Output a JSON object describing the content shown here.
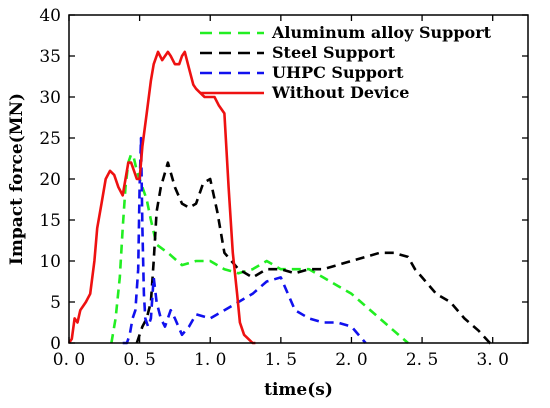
{
  "chart_data": {
    "type": "line",
    "xlabel": "time(s)",
    "ylabel": "Impact force(MN)",
    "xlim": [
      0,
      3.25
    ],
    "ylim": [
      0,
      40
    ],
    "xticks": [
      0.0,
      0.5,
      1.0,
      1.5,
      2.0,
      2.5,
      3.0
    ],
    "xtick_labels": [
      "0. 0",
      "0. 5",
      "1. 0",
      "1. 5",
      "2. 0",
      "2. 5",
      "3. 0"
    ],
    "yticks": [
      0,
      5,
      10,
      15,
      20,
      25,
      30,
      35,
      40
    ],
    "ytick_labels": [
      "0",
      "5",
      "10",
      "15",
      "20",
      "25",
      "30",
      "35",
      "40"
    ],
    "legend_position": "top-right",
    "series": [
      {
        "name": "Aluminum alloy Support",
        "color": "#22ee22",
        "dash": "dashed",
        "x": [
          0.3,
          0.33,
          0.36,
          0.38,
          0.4,
          0.42,
          0.44,
          0.46,
          0.48,
          0.5,
          0.52,
          0.55,
          0.58,
          0.62,
          0.7,
          0.8,
          0.9,
          1.0,
          1.1,
          1.2,
          1.3,
          1.4,
          1.5,
          1.6,
          1.7,
          1.8,
          1.9,
          2.0,
          2.1,
          2.2,
          2.3,
          2.4
        ],
        "y": [
          0,
          3,
          8,
          14,
          19,
          22,
          23,
          22.5,
          21,
          20,
          19,
          17.5,
          15,
          12,
          11,
          9.5,
          10,
          10,
          9,
          8.5,
          9,
          10,
          9,
          9,
          9,
          8,
          7,
          6,
          4.5,
          3,
          1.5,
          0
        ]
      },
      {
        "name": "Steel Support",
        "color": "#000000",
        "dash": "dashed",
        "x": [
          0.48,
          0.5,
          0.52,
          0.55,
          0.58,
          0.6,
          0.62,
          0.65,
          0.7,
          0.75,
          0.8,
          0.85,
          0.9,
          0.95,
          1.0,
          1.05,
          1.1,
          1.15,
          1.2,
          1.3,
          1.4,
          1.5,
          1.6,
          1.7,
          1.8,
          1.9,
          2.0,
          2.1,
          2.2,
          2.3,
          2.4,
          2.45,
          2.5,
          2.6,
          2.7,
          2.8,
          2.9,
          2.98,
          3.0
        ],
        "y": [
          0,
          1,
          2,
          3,
          5,
          10,
          16,
          19,
          22,
          19,
          17,
          16.5,
          17,
          19.5,
          20,
          16,
          11,
          10,
          9,
          8,
          9,
          9,
          8.5,
          9,
          9,
          9.5,
          10,
          10.5,
          11,
          11,
          10.5,
          9,
          8,
          6,
          5,
          3,
          1.5,
          0,
          0
        ]
      },
      {
        "name": "UHPC Support",
        "color": "#1111ee",
        "dash": "dashed",
        "x": [
          0.38,
          0.41,
          0.43,
          0.45,
          0.47,
          0.49,
          0.5,
          0.51,
          0.52,
          0.53,
          0.54,
          0.56,
          0.58,
          0.6,
          0.62,
          0.65,
          0.68,
          0.72,
          0.75,
          0.8,
          0.85,
          0.9,
          1.0,
          1.1,
          1.2,
          1.3,
          1.4,
          1.5,
          1.6,
          1.7,
          1.8,
          1.9,
          2.0,
          2.1
        ],
        "y": [
          0,
          0,
          1,
          3,
          4,
          9,
          19,
          25,
          14,
          6,
          3,
          2,
          3,
          8,
          5,
          3,
          2,
          4,
          3,
          1,
          2,
          3.5,
          3,
          4,
          5,
          6,
          7.5,
          8,
          4,
          3,
          2.5,
          2.5,
          2,
          0
        ]
      },
      {
        "name": "Without Device",
        "color": "#ee1111",
        "dash": "solid",
        "x": [
          0,
          0.02,
          0.04,
          0.06,
          0.08,
          0.1,
          0.12,
          0.15,
          0.18,
          0.2,
          0.23,
          0.26,
          0.29,
          0.32,
          0.35,
          0.38,
          0.4,
          0.42,
          0.44,
          0.46,
          0.48,
          0.5,
          0.52,
          0.55,
          0.58,
          0.6,
          0.63,
          0.66,
          0.7,
          0.72,
          0.75,
          0.78,
          0.8,
          0.82,
          0.85,
          0.88,
          0.9,
          0.93,
          0.96,
          1.0,
          1.03,
          1.06,
          1.1,
          1.13,
          1.16,
          1.19,
          1.21,
          1.24,
          1.27,
          1.3,
          1.32
        ],
        "y": [
          0,
          0.5,
          3,
          2.5,
          4,
          4.5,
          5,
          6,
          10,
          14,
          17,
          20,
          21,
          20.5,
          19,
          18,
          20,
          22,
          22,
          21,
          20,
          20,
          24,
          28,
          32,
          34,
          35.5,
          34.5,
          35.5,
          35,
          34,
          34,
          35,
          35.5,
          33.5,
          31.5,
          31,
          30.5,
          30,
          30,
          30,
          29,
          28,
          19,
          11,
          6,
          2.5,
          1,
          0.5,
          0,
          0
        ]
      }
    ]
  }
}
